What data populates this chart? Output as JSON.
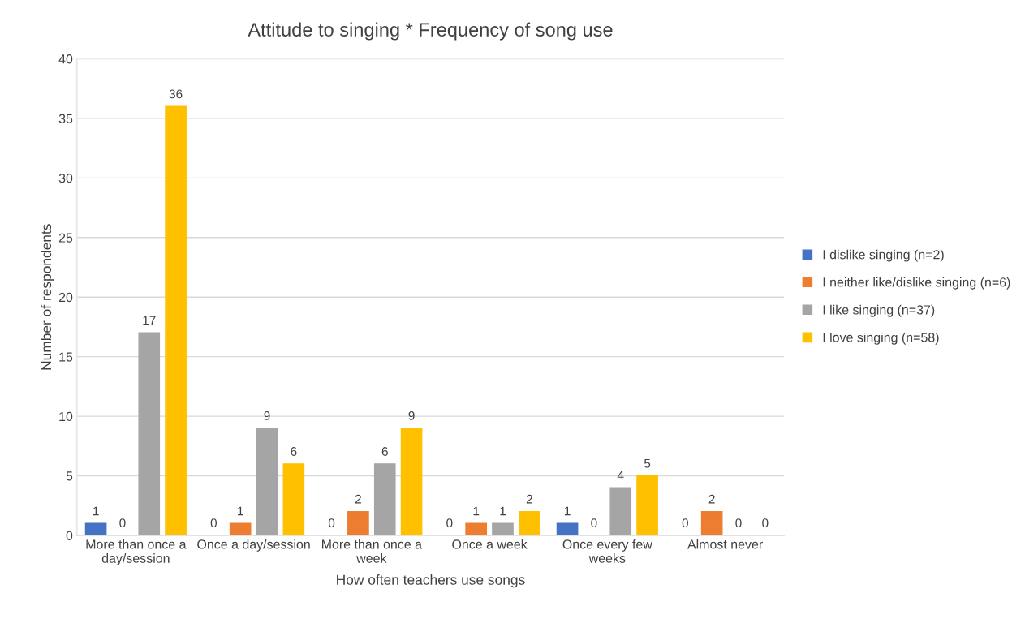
{
  "chart_data": {
    "type": "bar",
    "title": "Attitude to singing * Frequency of song use",
    "xlabel": "How often teachers use songs",
    "ylabel": "Number of respondents",
    "categories": [
      "More than once a\nday/session",
      "Once a day/session",
      "More than once a\nweek",
      "Once a week",
      "Once every few\nweeks",
      "Almost never"
    ],
    "series": [
      {
        "name": "I dislike singing (n=2)",
        "color": "#4472c4",
        "values": [
          1,
          0,
          0,
          0,
          1,
          0
        ]
      },
      {
        "name": "I neither like/dislike singing (n=6)",
        "color": "#ed7d31",
        "values": [
          0,
          1,
          2,
          1,
          0,
          2
        ]
      },
      {
        "name": "I like singing (n=37)",
        "color": "#a5a5a5",
        "values": [
          17,
          9,
          6,
          1,
          4,
          0
        ]
      },
      {
        "name": "I love singing (n=58)",
        "color": "#ffc000",
        "values": [
          36,
          6,
          9,
          2,
          5,
          0
        ]
      }
    ],
    "ylim": [
      0,
      40
    ],
    "yticks": [
      0,
      5,
      10,
      15,
      20,
      25,
      30,
      35,
      40
    ],
    "grid": "y",
    "legend": "right",
    "data_labels": true
  }
}
